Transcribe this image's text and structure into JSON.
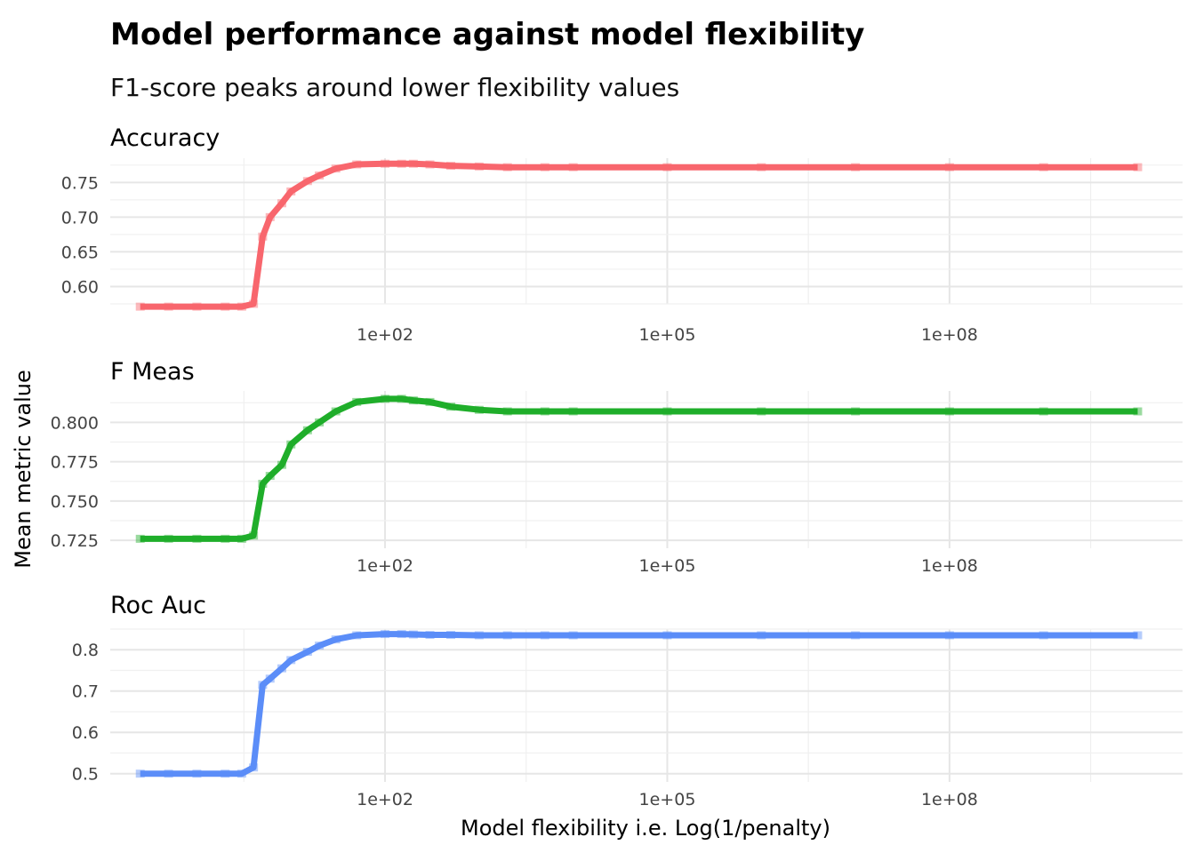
{
  "chart_data": {
    "type": "line",
    "title": "Model performance against model flexibility",
    "subtitle": "F1-score peaks around lower flexibility values",
    "xlabel": "Model flexibility i.e. Log(1/penalty)",
    "ylabel": "Mean metric value",
    "x_scale": "log10",
    "x_ticks": [
      100,
      100000,
      100000000
    ],
    "x_tick_labels": [
      "1e+02",
      "1e+05",
      "1e+08"
    ],
    "xlim": [
      0.12,
      30000000000
    ],
    "grid": true,
    "legend": "none",
    "x": [
      0.25,
      0.5,
      1,
      2,
      3,
      4,
      5,
      6,
      8,
      10,
      15,
      20,
      30,
      50,
      100,
      150,
      200,
      300,
      500,
      1000,
      2000,
      5000,
      10000,
      100000,
      1000000,
      10000000,
      100000000,
      1000000000,
      10000000000
    ],
    "panels": [
      {
        "name": "Accuracy",
        "color": "#F8666D",
        "ylim": [
          0.575,
          0.785
        ],
        "y_ticks": [
          0.6,
          0.65,
          0.7,
          0.75
        ],
        "y_tick_labels": [
          "0.60",
          "0.65",
          "0.70",
          "0.75"
        ],
        "values": [
          0.571,
          0.571,
          0.571,
          0.571,
          0.571,
          0.575,
          0.672,
          0.7,
          0.72,
          0.737,
          0.752,
          0.76,
          0.77,
          0.776,
          0.777,
          0.777,
          0.777,
          0.776,
          0.774,
          0.773,
          0.772,
          0.772,
          0.772,
          0.772,
          0.772,
          0.772,
          0.772,
          0.772,
          0.772
        ]
      },
      {
        "name": "F Meas",
        "color": "#1FAE2A",
        "ylim": [
          0.72,
          0.82
        ],
        "y_ticks": [
          0.725,
          0.75,
          0.775,
          0.8
        ],
        "y_tick_labels": [
          "0.725",
          "0.750",
          "0.775",
          "0.800"
        ],
        "values": [
          0.726,
          0.726,
          0.726,
          0.726,
          0.726,
          0.728,
          0.761,
          0.766,
          0.773,
          0.786,
          0.795,
          0.8,
          0.807,
          0.813,
          0.815,
          0.815,
          0.814,
          0.813,
          0.81,
          0.808,
          0.807,
          0.807,
          0.807,
          0.807,
          0.807,
          0.807,
          0.807,
          0.807,
          0.807
        ]
      },
      {
        "name": "Roc Auc",
        "color": "#5B8DF8",
        "ylim": [
          0.48,
          0.85
        ],
        "y_ticks": [
          0.5,
          0.6,
          0.7,
          0.8
        ],
        "y_tick_labels": [
          "0.5",
          "0.6",
          "0.7",
          "0.8"
        ],
        "values": [
          0.5,
          0.5,
          0.5,
          0.5,
          0.5,
          0.515,
          0.715,
          0.73,
          0.755,
          0.775,
          0.795,
          0.81,
          0.825,
          0.835,
          0.838,
          0.838,
          0.837,
          0.836,
          0.836,
          0.835,
          0.835,
          0.835,
          0.835,
          0.835,
          0.835,
          0.835,
          0.835,
          0.835,
          0.835
        ]
      }
    ]
  }
}
